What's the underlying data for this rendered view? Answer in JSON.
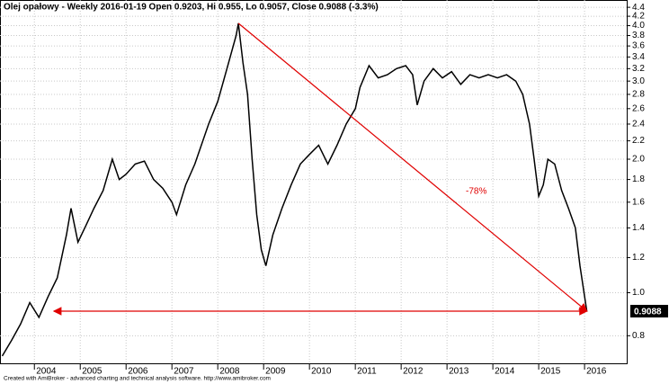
{
  "chart_data": {
    "type": "line",
    "title": "Olej opałowy - Weekly 2016-01-19 Open 0.9203, Hi 0.955, Lo 0.9057, Close 0.9088 (-3.3%)",
    "footer": "Created with AmiBroker - advanced charting and technical analysis software. http://www.amibroker.com",
    "annotation": "-78%",
    "color": "#000000",
    "annotation_color": "#e00000",
    "log_scale": true,
    "grid": true,
    "x": [
      2003.3,
      2003.5,
      2003.7,
      2003.9,
      2004.1,
      2004.3,
      2004.5,
      2004.7,
      2004.8,
      2004.95,
      2005.1,
      2005.3,
      2005.5,
      2005.7,
      2005.85,
      2006.0,
      2006.2,
      2006.4,
      2006.6,
      2006.8,
      2007.0,
      2007.1,
      2007.3,
      2007.5,
      2007.8,
      2008.0,
      2008.2,
      2008.4,
      2008.45,
      2008.55,
      2008.65,
      2008.75,
      2008.85,
      2008.95,
      2009.05,
      2009.2,
      2009.4,
      2009.6,
      2009.8,
      2010.0,
      2010.2,
      2010.4,
      2010.6,
      2010.8,
      2011.0,
      2011.1,
      2011.3,
      2011.5,
      2011.7,
      2011.9,
      2012.1,
      2012.25,
      2012.35,
      2012.5,
      2012.7,
      2012.9,
      2013.1,
      2013.3,
      2013.5,
      2013.7,
      2013.9,
      2014.1,
      2014.3,
      2014.5,
      2014.65,
      2014.8,
      2014.9,
      2015.0,
      2015.1,
      2015.2,
      2015.35,
      2015.5,
      2015.65,
      2015.8,
      2015.9,
      2016.05
    ],
    "values": [
      0.72,
      0.78,
      0.85,
      0.95,
      0.88,
      0.98,
      1.08,
      1.35,
      1.55,
      1.3,
      1.4,
      1.55,
      1.7,
      2.0,
      1.8,
      1.85,
      1.95,
      1.98,
      1.8,
      1.72,
      1.6,
      1.5,
      1.75,
      1.95,
      2.4,
      2.7,
      3.2,
      3.8,
      4.05,
      3.3,
      2.8,
      2.0,
      1.5,
      1.25,
      1.15,
      1.35,
      1.55,
      1.75,
      1.95,
      2.05,
      2.15,
      1.95,
      2.15,
      2.4,
      2.6,
      2.9,
      3.25,
      3.05,
      3.1,
      3.2,
      3.25,
      3.1,
      2.65,
      3.0,
      3.2,
      3.05,
      3.15,
      2.95,
      3.1,
      3.05,
      3.1,
      3.05,
      3.1,
      3.0,
      2.8,
      2.4,
      2.0,
      1.65,
      1.75,
      2.0,
      1.95,
      1.7,
      1.55,
      1.4,
      1.15,
      0.9088
    ],
    "xlim": [
      2003.25,
      2016.92
    ],
    "xticks": [
      2004,
      2005,
      2006,
      2007,
      2008,
      2009,
      2010,
      2011,
      2012,
      2013,
      2014,
      2015,
      2016
    ],
    "ylim": [
      0.69,
      4.57
    ],
    "yticks": [
      0.8,
      {
        "value": 1,
        "label": "1.0"
      },
      1.2,
      1.4,
      1.6,
      1.8,
      {
        "value": 2,
        "label": "2.0"
      },
      2.2,
      2.4,
      2.6,
      2.8,
      {
        "value": 3,
        "label": "3.0"
      },
      3.2,
      3.4,
      3.6,
      3.8,
      {
        "value": 4,
        "label": "4.0"
      },
      4.2,
      4.4
    ]
  }
}
